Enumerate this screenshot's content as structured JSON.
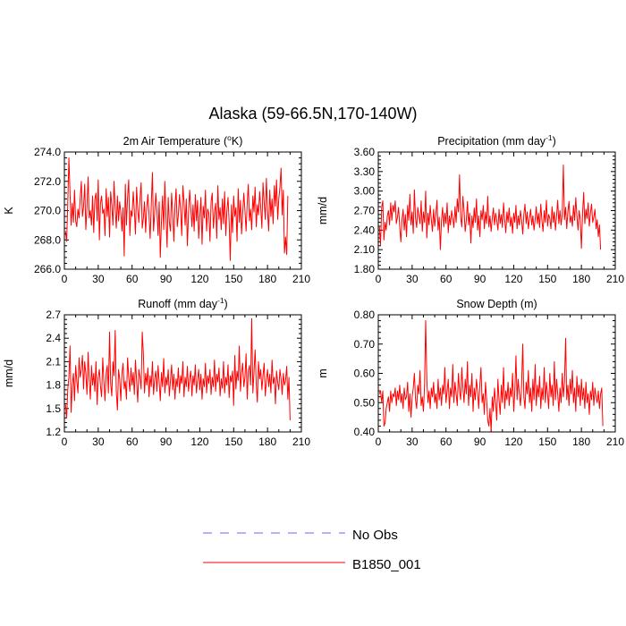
{
  "title": "Alaska (59-66.5N,170-140W)",
  "colors": {
    "model": "#ff0000",
    "obs": "#6666ff",
    "axis": "#000000"
  },
  "legend": {
    "placement": "bottom-center",
    "entries": [
      {
        "label": "No Obs",
        "style": "dashed",
        "color": "#6666ff"
      },
      {
        "label": "B1850_001",
        "style": "solid",
        "color": "#ff0000"
      }
    ]
  },
  "chart_data": [
    {
      "type": "line",
      "title_text": "2m Air Temperature (",
      "title_sup": "o",
      "title_after": "K)",
      "ylabel": "K",
      "xlabel": "",
      "xlim": [
        0,
        210
      ],
      "ylim": [
        266.0,
        274.0
      ],
      "xticks": [
        "0",
        "30",
        "60",
        "90",
        "120",
        "150",
        "180",
        "210"
      ],
      "yticks": [
        "266.0",
        "268.0",
        "270.0",
        "272.0",
        "274.0"
      ],
      "series": [
        {
          "name": "B1850_001",
          "x_start": 1,
          "x_step": 1,
          "values": [
            268.6,
            267.9,
            270.5,
            273.6,
            271.2,
            269.0,
            270.5,
            269.2,
            271.4,
            269.3,
            268.9,
            270.1,
            269.5,
            270.8,
            272.0,
            269.6,
            270.3,
            271.8,
            268.7,
            270.2,
            272.3,
            269.5,
            270.0,
            269.0,
            271.0,
            268.5,
            270.8,
            271.2,
            269.3,
            272.1,
            268.0,
            270.5,
            271.0,
            269.8,
            270.1,
            268.3,
            271.5,
            269.6,
            270.9,
            268.2,
            271.3,
            270.4,
            269.0,
            272.0,
            270.2,
            268.8,
            271.0,
            269.3,
            270.6,
            269.9,
            268.6,
            270.2,
            266.9,
            271.8,
            269.0,
            270.9,
            272.1,
            268.3,
            270.0,
            269.6,
            271.3,
            270.0,
            268.4,
            271.6,
            270.1,
            269.2,
            270.8,
            271.9,
            268.8,
            269.5,
            270.6,
            268.5,
            270.2,
            271.1,
            269.7,
            268.1,
            270.4,
            272.6,
            268.6,
            269.8,
            271.2,
            270.0,
            268.3,
            270.6,
            266.8,
            269.2,
            271.0,
            268.7,
            272.0,
            269.6,
            267.5,
            270.9,
            269.2,
            268.6,
            271.2,
            269.8,
            267.9,
            270.3,
            271.5,
            268.9,
            269.7,
            271.1,
            270.0,
            268.3,
            271.7,
            270.6,
            269.0,
            270.8,
            267.6,
            269.8,
            271.4,
            270.2,
            268.9,
            270.4,
            268.6,
            271.1,
            269.3,
            270.7,
            268.1,
            269.6,
            270.9,
            267.7,
            270.3,
            269.5,
            271.4,
            268.6,
            270.1,
            269.8,
            267.9,
            270.6,
            271.2,
            268.8,
            269.9,
            270.5,
            268.1,
            271.7,
            269.4,
            270.2,
            268.7,
            270.8,
            269.1,
            271.3,
            268.3,
            270.0,
            270.9,
            269.2,
            266.6,
            270.4,
            268.5,
            271.0,
            269.6,
            270.2,
            267.9,
            271.5,
            269.2,
            270.7,
            268.4,
            269.8,
            271.2,
            270.0,
            268.6,
            270.5,
            271.8,
            269.3,
            270.1,
            268.7,
            271.0,
            269.9,
            271.6,
            268.9,
            270.4,
            269.7,
            271.3,
            270.2,
            268.8,
            271.9,
            270.6,
            269.4,
            272.2,
            270.0,
            268.6,
            271.4,
            269.6,
            270.8,
            269.1,
            271.7,
            270.3,
            272.1,
            269.4,
            270.8,
            271.6,
            272.9,
            269.7,
            271.4,
            267.1,
            268.2,
            267.0,
            271.0
          ]
        }
      ]
    },
    {
      "type": "line",
      "title_text": "Precipitation (mm day",
      "title_sup": "-1",
      "title_after": ")",
      "ylabel": "mm/d",
      "xlabel": "",
      "xlim": [
        0,
        210
      ],
      "ylim": [
        1.8,
        3.6
      ],
      "xticks": [
        "0",
        "30",
        "60",
        "90",
        "120",
        "150",
        "180",
        "210"
      ],
      "yticks": [
        "1.80",
        "2.10",
        "2.40",
        "2.70",
        "3.00",
        "3.30",
        "3.60"
      ],
      "series": [
        {
          "name": "B1850_001",
          "x_start": 1,
          "x_step": 1,
          "values": [
            2.45,
            2.17,
            2.75,
            2.85,
            2.25,
            2.52,
            2.4,
            2.62,
            2.7,
            2.48,
            2.82,
            2.55,
            2.78,
            2.68,
            2.85,
            2.5,
            2.6,
            2.75,
            2.45,
            2.22,
            2.55,
            2.72,
            2.4,
            2.64,
            2.3,
            2.78,
            2.55,
            2.95,
            2.48,
            2.68,
            2.35,
            3.02,
            2.58,
            2.44,
            2.75,
            2.62,
            2.5,
            2.85,
            2.38,
            2.68,
            2.52,
            3.0,
            2.28,
            2.66,
            2.48,
            2.78,
            2.56,
            2.38,
            2.72,
            2.46,
            2.64,
            2.86,
            2.4,
            2.6,
            2.1,
            2.55,
            2.75,
            2.45,
            2.66,
            2.5,
            2.82,
            2.36,
            2.62,
            2.48,
            2.7,
            2.58,
            2.44,
            2.76,
            2.52,
            2.88,
            2.68,
            3.25,
            2.6,
            2.45,
            2.92,
            2.7,
            2.38,
            2.55,
            2.84,
            2.48,
            2.66,
            2.2,
            2.62,
            2.44,
            2.74,
            2.52,
            2.88,
            2.4,
            2.62,
            2.3,
            2.7,
            2.56,
            2.78,
            2.42,
            2.68,
            2.5,
            2.92,
            2.45,
            2.62,
            2.38,
            2.58,
            2.74,
            2.48,
            2.66,
            2.55,
            2.4,
            2.72,
            2.5,
            2.64,
            2.44,
            2.82,
            2.56,
            2.36,
            2.68,
            2.52,
            2.74,
            2.46,
            2.6,
            2.35,
            2.66,
            2.52,
            2.78,
            2.42,
            2.62,
            2.48,
            2.7,
            2.56,
            2.34,
            2.64,
            2.8,
            2.5,
            2.68,
            2.42,
            2.58,
            2.72,
            2.48,
            2.62,
            2.4,
            2.56,
            2.76,
            2.5,
            2.66,
            2.44,
            2.8,
            2.55,
            2.38,
            2.7,
            2.52,
            2.86,
            2.46,
            2.64,
            2.58,
            2.42,
            2.76,
            2.52,
            2.68,
            2.4,
            2.62,
            2.86,
            2.5,
            2.7,
            2.48,
            2.64,
            3.4,
            2.56,
            2.75,
            2.42,
            2.68,
            2.84,
            2.52,
            2.62,
            2.46,
            2.78,
            2.55,
            2.9,
            2.62,
            2.4,
            2.7,
            2.56,
            2.12,
            2.64,
            2.98,
            2.5,
            2.72,
            2.58,
            2.82,
            2.46,
            2.66,
            2.8,
            2.52,
            2.6,
            2.72,
            2.42,
            2.56,
            2.3,
            2.48,
            2.1
          ]
        }
      ]
    },
    {
      "type": "line",
      "title_text": "Runoff (mm day",
      "title_sup": "-1",
      "title_after": ")",
      "ylabel": "mm/d",
      "xlabel": "",
      "xlim": [
        0,
        210
      ],
      "ylim": [
        1.2,
        2.7
      ],
      "xticks": [
        "0",
        "30",
        "60",
        "90",
        "120",
        "150",
        "180",
        "210"
      ],
      "yticks": [
        "1.2",
        "1.5",
        "1.8",
        "2.1",
        "2.4",
        "2.7"
      ],
      "series": [
        {
          "name": "B1850_001",
          "x_start": 1,
          "x_step": 1,
          "values": [
            1.55,
            1.38,
            1.75,
            1.9,
            2.3,
            1.45,
            1.8,
            1.95,
            1.6,
            2.05,
            1.85,
            1.7,
            2.15,
            1.9,
            2.0,
            2.18,
            1.75,
            2.1,
            1.95,
            1.68,
            2.22,
            1.88,
            1.62,
            2.05,
            1.8,
            1.95,
            1.72,
            2.1,
            1.55,
            1.9,
            2.0,
            1.78,
            1.65,
            2.15,
            1.85,
            1.6,
            1.95,
            2.05,
            1.7,
            2.48,
            1.82,
            1.66,
            2.1,
            1.92,
            2.5,
            1.72,
            1.48,
            2.0,
            1.88,
            1.6,
            1.95,
            2.08,
            1.75,
            1.85,
            1.62,
            2.15,
            1.9,
            1.72,
            2.02,
            1.8,
            1.96,
            1.68,
            2.12,
            1.85,
            1.58,
            2.0,
            1.9,
            1.75,
            2.48,
            2.2,
            1.7,
            1.95,
            1.8,
            2.02,
            1.65,
            1.92,
            1.78,
            2.1,
            1.68,
            1.88,
            1.98,
            1.72,
            2.05,
            1.84,
            1.6,
            1.96,
            1.78,
            2.14,
            1.7,
            1.9,
            1.8,
            2.0,
            1.66,
            1.86,
            2.06,
            1.74,
            1.94,
            1.62,
            1.88,
            1.78,
            2.02,
            1.7,
            1.92,
            1.82,
            2.1,
            1.65,
            1.9,
            1.78,
            2.04,
            1.72,
            1.88,
            1.98,
            1.66,
            1.92,
            1.8,
            2.06,
            1.7,
            1.86,
            2.0,
            1.74,
            1.94,
            1.62,
            1.88,
            1.78,
            2.08,
            1.7,
            1.92,
            1.82,
            2.0,
            1.68,
            1.9,
            1.78,
            2.12,
            1.72,
            1.94,
            1.84,
            2.02,
            1.66,
            1.88,
            1.76,
            2.1,
            1.7,
            1.9,
            1.8,
            2.06,
            1.64,
            1.92,
            1.84,
            1.98,
            1.54,
            2.18,
            1.75,
            1.98,
            1.86,
            2.3,
            1.72,
            1.95,
            2.08,
            1.78,
            1.9,
            2.2,
            1.62,
            1.98,
            2.05,
            1.8,
            2.65,
            1.7,
            1.96,
            2.25,
            1.82,
            1.58,
            2.1,
            1.88,
            2.0,
            1.74,
            1.92,
            2.08,
            1.66,
            1.86,
            2.0,
            1.78,
            1.94,
            1.7,
            2.12,
            1.82,
            1.9,
            1.56,
            1.98,
            1.84,
            1.74,
            2.0,
            1.88,
            1.68,
            1.95,
            1.8,
            1.86,
            2.04,
            1.62,
            1.9,
            1.35
          ]
        }
      ]
    },
    {
      "type": "line",
      "title_text": "Snow Depth (m)",
      "title_sup": "",
      "title_after": "",
      "ylabel": "m",
      "xlabel": "",
      "xlim": [
        0,
        210
      ],
      "ylim": [
        0.4,
        0.8
      ],
      "xticks": [
        "0",
        "30",
        "60",
        "90",
        "120",
        "150",
        "180",
        "210"
      ],
      "yticks": [
        "0.40",
        "0.50",
        "0.60",
        "0.70",
        "0.80"
      ],
      "series": [
        {
          "name": "B1850_001",
          "x_start": 1,
          "x_step": 1,
          "values": [
            0.53,
            0.54,
            0.5,
            0.54,
            0.42,
            0.43,
            0.48,
            0.5,
            0.52,
            0.47,
            0.54,
            0.5,
            0.53,
            0.52,
            0.55,
            0.49,
            0.54,
            0.51,
            0.56,
            0.5,
            0.53,
            0.48,
            0.55,
            0.51,
            0.52,
            0.57,
            0.47,
            0.53,
            0.45,
            0.52,
            0.55,
            0.6,
            0.51,
            0.48,
            0.56,
            0.53,
            0.61,
            0.49,
            0.52,
            0.47,
            0.56,
            0.78,
            0.58,
            0.5,
            0.54,
            0.48,
            0.55,
            0.52,
            0.57,
            0.5,
            0.53,
            0.48,
            0.58,
            0.51,
            0.55,
            0.49,
            0.56,
            0.53,
            0.62,
            0.5,
            0.54,
            0.58,
            0.48,
            0.55,
            0.52,
            0.63,
            0.5,
            0.57,
            0.53,
            0.49,
            0.6,
            0.54,
            0.51,
            0.62,
            0.55,
            0.5,
            0.58,
            0.53,
            0.64,
            0.49,
            0.56,
            0.52,
            0.6,
            0.47,
            0.55,
            0.51,
            0.58,
            0.54,
            0.48,
            0.56,
            0.62,
            0.5,
            0.53,
            0.46,
            0.57,
            0.51,
            0.44,
            0.42,
            0.48,
            0.4,
            0.52,
            0.47,
            0.55,
            0.5,
            0.44,
            0.58,
            0.51,
            0.46,
            0.56,
            0.5,
            0.62,
            0.48,
            0.54,
            0.51,
            0.57,
            0.49,
            0.55,
            0.52,
            0.6,
            0.47,
            0.54,
            0.66,
            0.51,
            0.58,
            0.53,
            0.49,
            0.56,
            0.7,
            0.52,
            0.48,
            0.57,
            0.53,
            0.61,
            0.5,
            0.55,
            0.47,
            0.58,
            0.51,
            0.63,
            0.49,
            0.56,
            0.52,
            0.59,
            0.48,
            0.55,
            0.51,
            0.62,
            0.5,
            0.57,
            0.53,
            0.48,
            0.6,
            0.52,
            0.56,
            0.49,
            0.64,
            0.51,
            0.58,
            0.53,
            0.47,
            0.55,
            0.5,
            0.6,
            0.52,
            0.57,
            0.72,
            0.51,
            0.56,
            0.49,
            0.58,
            0.53,
            0.61,
            0.5,
            0.55,
            0.47,
            0.59,
            0.52,
            0.56,
            0.49,
            0.58,
            0.51,
            0.55,
            0.48,
            0.57,
            0.5,
            0.53,
            0.46,
            0.54,
            0.51,
            0.57,
            0.49,
            0.55,
            0.52,
            0.5,
            0.54,
            0.48,
            0.53,
            0.55,
            0.42
          ]
        }
      ]
    }
  ]
}
